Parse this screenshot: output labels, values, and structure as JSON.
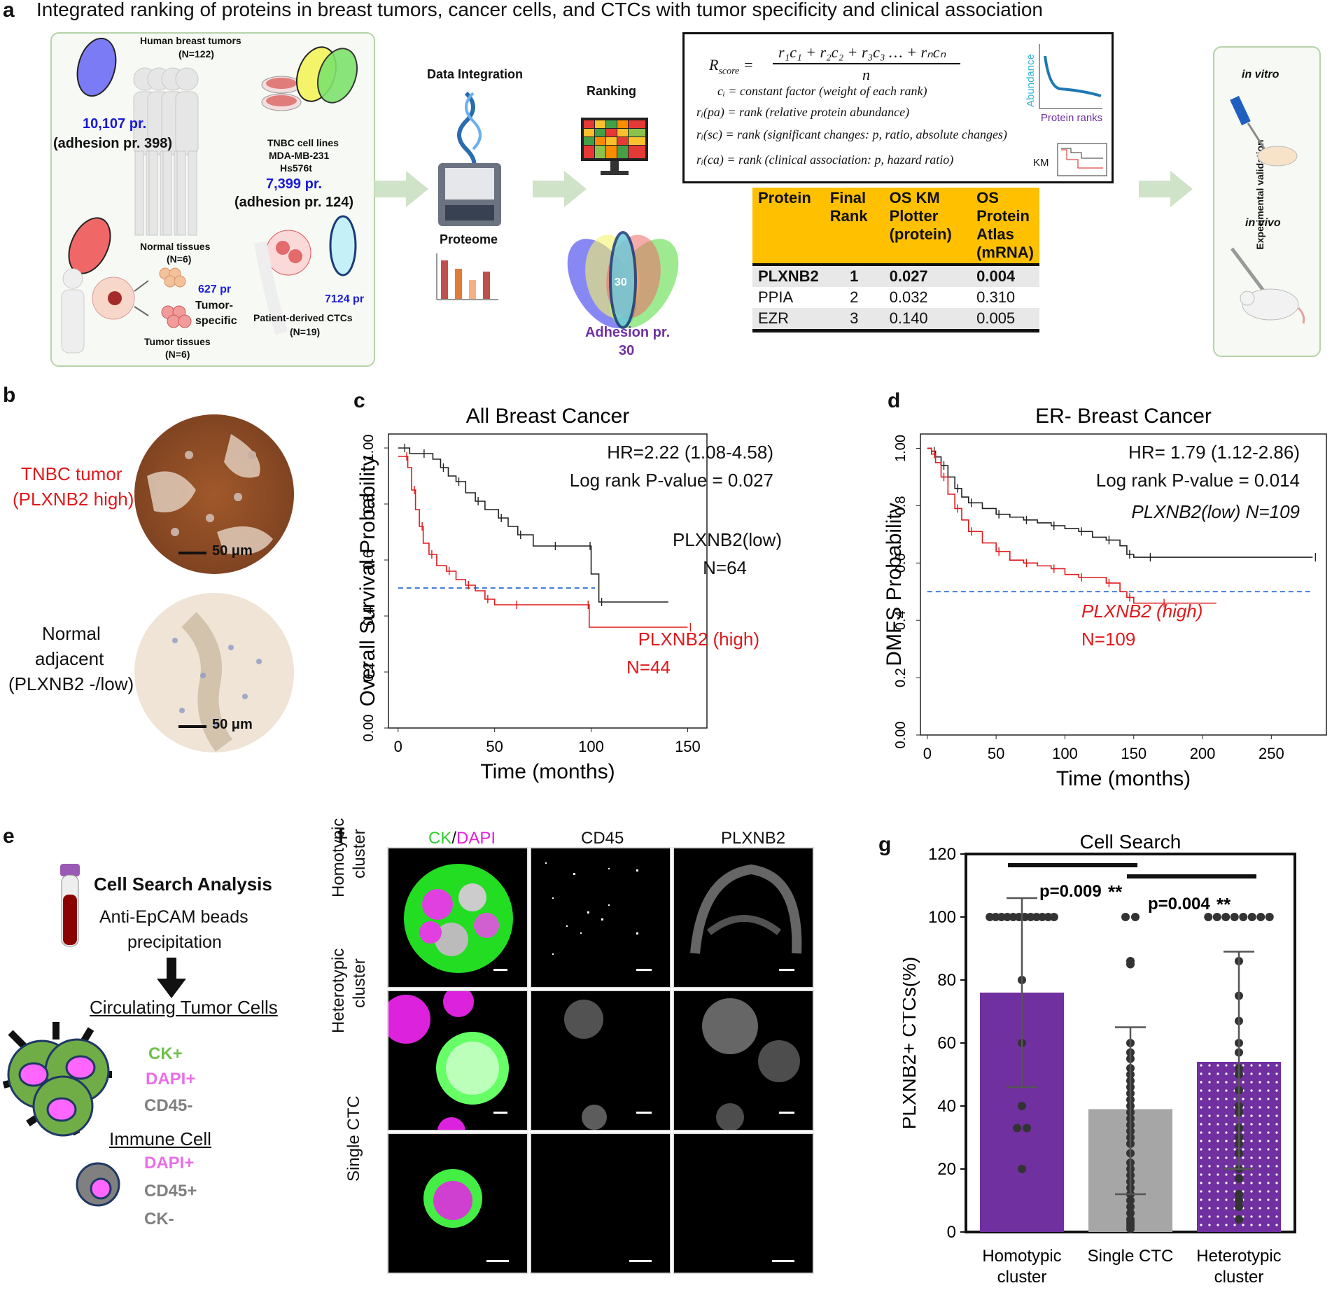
{
  "title": "Integrated ranking of proteins in breast tumors, cancer cells, and CTCs with tumor specificity and clinical association",
  "panels": {
    "a": "a",
    "b": "b",
    "c": "c",
    "d": "d",
    "e": "e",
    "f": "f",
    "g": "g"
  },
  "panel_a": {
    "tumors_title": "Human breast tumors",
    "tumors_n": "(N=122)",
    "tumors_count": "10,107 pr.",
    "tumors_adhesion": "(adhesion pr. 398)",
    "cells_title": "TNBC cell lines",
    "cells_line1": "MDA-MB-231",
    "cells_line2": "Hs576t",
    "cells_count": "7,399 pr.",
    "cells_adhesion": "(adhesion pr. 124)",
    "normal_title": "Normal tissues",
    "normal_n": "(N=6)",
    "tumor_tissue_title": "Tumor tissues",
    "tumor_tissue_n": "(N=6)",
    "tissue_count": "627 pr",
    "tissue_spec1": "Tumor-",
    "tissue_spec2": "specific",
    "ctc_count": "7124 pr",
    "ctc_title": "Patient-derived CTCs",
    "ctc_n": "(N=19)",
    "data_integration": "Data Integration",
    "proteome": "Proteome",
    "ranking": "Ranking",
    "venn_center": "30",
    "adhesion_label": "Adhesion pr.",
    "adhesion_n": "30",
    "formula_lhs": "R",
    "formula_lhs_sub": "score",
    "formula_num": "r₁c₁ + r₂c₂ + r₃c₃ … + rₙcₙ",
    "formula_den": "n",
    "def1": "cᵢ = constant factor (weight of each rank)",
    "def2": "rᵢ(pa) = rank (relative protein abundance)",
    "def3": "rᵢ(sc) = rank (significant changes: p, ratio, absolute changes)",
    "def4": "rᵢ(ca) = rank (clinical association: p, hazard ratio)",
    "mini_y": "Abundance",
    "mini_x": "Protein ranks",
    "km_label": "KM",
    "table_headers": [
      "Protein",
      "Final Rank",
      "OS KM Plotter (protein)",
      "OS Protein Atlas (mRNA)"
    ],
    "table_rows": [
      [
        "PLXNB2",
        "1",
        "0.027",
        "0.004"
      ],
      [
        "PPIA",
        "2",
        "0.032",
        "0.310"
      ],
      [
        "EZR",
        "3",
        "0.140",
        "0.005"
      ]
    ],
    "validation": "Experimental validation",
    "in_vitro": "in vitro",
    "in_vivo": "in vivo"
  },
  "panel_b": {
    "tumor_label1": "TNBC tumor",
    "tumor_label2": "(PLXNB2 high)",
    "normal_label1": "Normal",
    "normal_label2": "adjacent",
    "normal_label3": "(PLXNB2 -/low)",
    "scale1": "50 μm",
    "scale2": "50 μm"
  },
  "panel_e": {
    "title": "Cell Search Analysis",
    "beads1": "Anti-EpCAM beads",
    "beads2": "precipitation",
    "ctc_title": "Circulating Tumor Cells",
    "ck": "CK+",
    "dapi": "DAPI+",
    "cd45": "CD45-",
    "immune_title": "Immune Cell",
    "i_dapi": "DAPI+",
    "i_cd45": "CD45+",
    "i_ck": "CK-"
  },
  "panel_f": {
    "col1a": "CK",
    "col1sep": "/",
    "col1b": "DAPI",
    "col2": "CD45",
    "col3": "PLXNB2",
    "row1a": "Homotypic",
    "row1b": "cluster",
    "row2a": "Heterotypic",
    "row2b": "cluster",
    "row3": "Single CTC"
  },
  "colors": {
    "red": "#e0191b",
    "black": "#222222",
    "blue_dash": "#2a6bd1",
    "purple": "#7030a0",
    "gray_bar": "#a6a6a6",
    "table_header": "#ffc000",
    "text_blue": "#1a1ad6"
  },
  "chart_data": [
    {
      "id": "c",
      "type": "line",
      "title": "All Breast Cancer",
      "xlabel": "Time (months)",
      "ylabel": "Overall Survival  Probability",
      "xticks": [
        "0",
        "50",
        "100",
        "150"
      ],
      "yticks": [
        "0.00",
        "0.2",
        "0.4",
        "0.6",
        "0.8",
        "1.00"
      ],
      "xlim": [
        -5,
        160
      ],
      "ylim": [
        0,
        1.05
      ],
      "hr_text": "HR=2.22 (1.08-4.58)",
      "p_text": "Log rank P-value = 0.027",
      "median_line": 0.5,
      "series": [
        {
          "name": "PLXNB2(low)",
          "n_label": "N=64",
          "color": "#222222",
          "x": [
            0,
            2,
            6,
            12,
            18,
            22,
            26,
            30,
            35,
            40,
            45,
            52,
            57,
            62,
            70,
            80,
            90,
            98,
            100,
            104,
            140
          ],
          "y": [
            1.0,
            1.0,
            0.98,
            0.98,
            0.96,
            0.93,
            0.9,
            0.88,
            0.84,
            0.81,
            0.78,
            0.75,
            0.72,
            0.69,
            0.65,
            0.65,
            0.65,
            0.65,
            0.55,
            0.45,
            0.45
          ]
        },
        {
          "name": "PLXNB2 (high)",
          "n_label": "N=44",
          "color": "#e0191b",
          "x": [
            0,
            3,
            5,
            7,
            9,
            11,
            13,
            16,
            20,
            25,
            30,
            35,
            40,
            45,
            50,
            60,
            80,
            97,
            99,
            150
          ],
          "y": [
            0.97,
            0.97,
            0.93,
            0.85,
            0.78,
            0.72,
            0.66,
            0.62,
            0.58,
            0.56,
            0.53,
            0.51,
            0.49,
            0.46,
            0.44,
            0.44,
            0.44,
            0.44,
            0.36,
            0.36
          ]
        }
      ]
    },
    {
      "id": "d",
      "type": "line",
      "title": "ER- Breast Cancer",
      "xlabel": "Time (months)",
      "ylabel": "DMFS Probability",
      "xticks": [
        "0",
        "50",
        "100",
        "150",
        "200",
        "250"
      ],
      "yticks": [
        "0.00",
        "0.2",
        "0.4",
        "0.6",
        "0.8",
        "1.00"
      ],
      "xlim": [
        -5,
        290
      ],
      "ylim": [
        0,
        1.05
      ],
      "hr_text": "HR= 1.79 (1.12-2.86)",
      "p_text": "Log rank P-value = 0.014",
      "median_line": 0.5,
      "series": [
        {
          "name": "PLXNB2(low) N=109",
          "n_label": "",
          "color": "#222222",
          "x": [
            0,
            3,
            6,
            10,
            15,
            20,
            25,
            30,
            40,
            50,
            60,
            70,
            80,
            90,
            100,
            110,
            120,
            130,
            140,
            145,
            150,
            160,
            200,
            280
          ],
          "y": [
            1.0,
            0.99,
            0.97,
            0.94,
            0.9,
            0.86,
            0.83,
            0.81,
            0.79,
            0.77,
            0.76,
            0.75,
            0.74,
            0.73,
            0.72,
            0.71,
            0.69,
            0.68,
            0.66,
            0.63,
            0.62,
            0.62,
            0.62,
            0.62
          ]
        },
        {
          "name": "PLXNB2 (high)",
          "n_label": "N=109",
          "color": "#e0191b",
          "x": [
            0,
            3,
            6,
            10,
            15,
            20,
            25,
            30,
            40,
            50,
            60,
            70,
            80,
            90,
            100,
            110,
            120,
            130,
            140,
            145,
            150,
            170,
            210
          ],
          "y": [
            1.0,
            0.98,
            0.95,
            0.9,
            0.84,
            0.79,
            0.75,
            0.71,
            0.67,
            0.64,
            0.61,
            0.6,
            0.59,
            0.58,
            0.56,
            0.55,
            0.55,
            0.53,
            0.5,
            0.48,
            0.46,
            0.46,
            0.46
          ]
        }
      ]
    },
    {
      "id": "g",
      "type": "bar",
      "title": "Cell Search",
      "ylabel": "PLXNB2+ CTCs(%)",
      "categories": [
        "Homotypic cluster",
        "Single CTC",
        "Heterotypic cluster"
      ],
      "values": [
        76,
        39,
        54
      ],
      "errors_low": [
        46,
        12,
        20
      ],
      "errors_high": [
        106,
        65,
        89
      ],
      "ylim": [
        0,
        120
      ],
      "yticks": [
        "0",
        "20",
        "40",
        "60",
        "80",
        "100",
        "120"
      ],
      "sig1": "p=0.009",
      "sig1_stars": "**",
      "sig2": "p=0.004",
      "sig2_stars": "**",
      "points": [
        [
          100,
          100,
          100,
          100,
          100,
          100,
          100,
          100,
          100,
          100,
          100,
          100,
          80,
          60,
          40,
          33,
          33,
          20
        ],
        [
          100,
          100,
          86,
          85,
          60,
          57,
          55,
          52,
          50,
          48,
          46,
          44,
          42,
          40,
          38,
          36,
          34,
          32,
          30,
          28,
          25,
          22,
          20,
          18,
          16,
          14,
          12,
          10,
          8,
          6,
          4,
          3,
          2,
          1
        ],
        [
          100,
          100,
          100,
          100,
          100,
          100,
          100,
          100,
          86,
          75,
          67,
          60,
          57,
          52,
          50,
          45,
          40,
          38,
          33,
          30,
          28,
          25,
          20,
          17,
          12,
          10,
          8,
          4
        ]
      ]
    }
  ]
}
